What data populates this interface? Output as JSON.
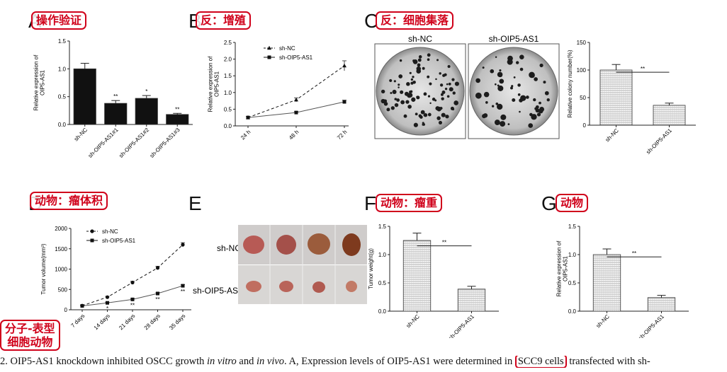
{
  "tags": {
    "A": "操作验证",
    "B": "反：增殖",
    "C": "反：细胞集落",
    "D": "动物：瘤体积",
    "F": "动物：瘤重",
    "G": "动物",
    "mol": "分子-表型\n细胞动物"
  },
  "letters": {
    "A": "A",
    "B": "B",
    "C": "C",
    "D": "D",
    "E": "E",
    "F": "F",
    "G": "G"
  },
  "caption": {
    "p1": "2. OIP5-AS1 knockdown inhibited OSCC growth ",
    "i1": "in vitro",
    "p2": " and ",
    "i2": "in vivo",
    "p3": ". A, Expression levels of OIP5-AS1 were determined in ",
    "hl": "SCC9 cells",
    "p4": " transfected with sh-"
  },
  "photos": {
    "colony_labels": [
      "sh-NC",
      "sh-OIP5-AS1"
    ],
    "tumor_labels": [
      "sh-NC",
      "sh-OIP5-AS1"
    ]
  },
  "chart_data": [
    {
      "id": "A",
      "type": "bar",
      "categories": [
        "sh-NC",
        "sh-OIP5-AS1#1",
        "sh-OIP5-AS1#2",
        "sh-OIP5-AS1#3"
      ],
      "values": [
        1.0,
        0.38,
        0.47,
        0.18
      ],
      "errors": [
        0.1,
        0.05,
        0.05,
        0.02
      ],
      "annotations": [
        "",
        "**",
        "*",
        "**"
      ],
      "ylabel": "Relative expression of\nOIP5-AS1",
      "ylim": [
        0,
        1.5
      ],
      "yticks": [
        "0.0",
        "0.5",
        "1.0",
        "1.5"
      ],
      "fill": "#111111"
    },
    {
      "id": "B",
      "type": "line",
      "x": [
        "24 h",
        "48 h",
        "72 h"
      ],
      "series": [
        {
          "name": "sh-NC",
          "values": [
            0.25,
            0.78,
            1.8
          ],
          "errors": [
            0.03,
            0.06,
            0.15
          ],
          "dashed": true,
          "marker": "triangle"
        },
        {
          "name": "sh-OIP5-AS1",
          "values": [
            0.25,
            0.4,
            0.72
          ],
          "errors": [
            0.03,
            0.03,
            0.05
          ],
          "dashed": false,
          "marker": "square"
        }
      ],
      "ylabel": "Relative expression of\nOIP5-AS1",
      "ylim": [
        0,
        2.5
      ],
      "yticks": [
        "0.0",
        "0.5",
        "1.0",
        "1.5",
        "2.0",
        "2.5"
      ],
      "legend": "top-left"
    },
    {
      "id": "C",
      "type": "bar",
      "categories": [
        "sh-NC",
        "sh-OIP5-AS1"
      ],
      "values": [
        100,
        36
      ],
      "errors": [
        10,
        4
      ],
      "annotations": [
        "**"
      ],
      "ylabel": "Relative colony number(%)",
      "ylim": [
        0,
        150
      ],
      "yticks": [
        "0",
        "50",
        "100",
        "150"
      ],
      "fill": "hatched"
    },
    {
      "id": "D",
      "type": "line",
      "x": [
        "7 days",
        "14 days",
        "21 days",
        "28 days",
        "35 days"
      ],
      "series": [
        {
          "name": "sh-NC",
          "values": [
            100,
            310,
            670,
            1030,
            1600
          ],
          "errors": [
            10,
            20,
            30,
            40,
            50
          ],
          "dashed": true,
          "marker": "circle"
        },
        {
          "name": "sh-OIP5-AS1",
          "values": [
            95,
            170,
            255,
            400,
            590
          ],
          "errors": [
            10,
            15,
            20,
            25,
            30
          ],
          "dashed": false,
          "marker": "square"
        }
      ],
      "annotations": [
        "",
        "*",
        "**",
        "**",
        "**"
      ],
      "ylabel": "Tumor volume(mm³)",
      "ylim": [
        0,
        2000
      ],
      "yticks": [
        "0",
        "500",
        "1000",
        "1500",
        "2000"
      ],
      "legend": "top-left"
    },
    {
      "id": "F",
      "type": "bar",
      "categories": [
        "sh-NC",
        "sh-OIP5-AS1"
      ],
      "values": [
        1.25,
        0.39
      ],
      "errors": [
        0.13,
        0.05
      ],
      "annotations": [
        "**"
      ],
      "ylabel": "Tumor weight(g)",
      "ylim": [
        0,
        1.5
      ],
      "yticks": [
        "0.0",
        "0.5",
        "1.0",
        "1.5"
      ],
      "fill": "hatched"
    },
    {
      "id": "G",
      "type": "bar",
      "categories": [
        "sh-NC",
        "sh-OIP5-AS1"
      ],
      "values": [
        1.0,
        0.24
      ],
      "errors": [
        0.1,
        0.04
      ],
      "annotations": [
        "**"
      ],
      "ylabel": "Relative expression of\nOIP5-AS1",
      "ylim": [
        0,
        1.5
      ],
      "yticks": [
        "0.0",
        "0.5",
        "1.0",
        "1.5"
      ],
      "fill": "hatched"
    }
  ]
}
